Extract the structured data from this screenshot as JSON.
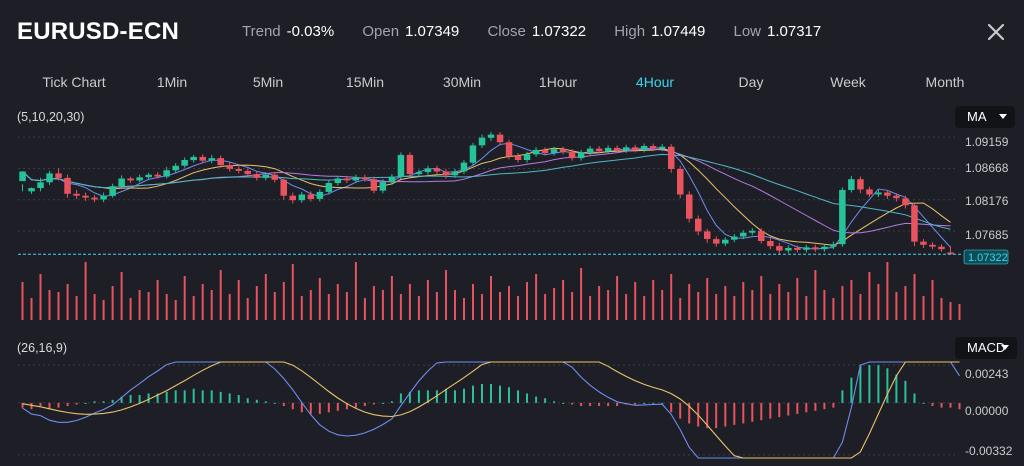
{
  "header": {
    "symbol": "EURUSD-ECN",
    "stats": [
      {
        "label": "Trend",
        "value": "-0.03%"
      },
      {
        "label": "Open",
        "value": "1.07349"
      },
      {
        "label": "Close",
        "value": "1.07322"
      },
      {
        "label": "High",
        "value": "1.07449"
      },
      {
        "label": "Low",
        "value": "1.07317"
      }
    ],
    "close_icon": "close-icon"
  },
  "tabs": [
    "Tick Chart",
    "1Min",
    "5Min",
    "15Min",
    "30Min",
    "1Hour",
    "4Hour",
    "Day",
    "Week",
    "Month"
  ],
  "active_tab": "4Hour",
  "colors": {
    "background": "#1e1f26",
    "up": "#26c29a",
    "down": "#e8535e",
    "accent": "#3ad6f0",
    "ma5": "#6f8cf0",
    "ma10": "#e8c36b",
    "ma20": "#b57be0",
    "ma30": "#4fb7c9"
  },
  "main_indicator": {
    "params": "(5,10,20,30)",
    "select": "MA",
    "price_ticks": [
      "1.09159",
      "1.08668",
      "1.08176",
      "1.07685"
    ],
    "current_price": "1.07322"
  },
  "sub_indicator": {
    "params": "(26,16,9)",
    "select": "MACD",
    "ticks": [
      "0.00243",
      "0.00000",
      "-0.00332"
    ]
  },
  "chart_data": {
    "type": "candlestick",
    "symbol": "EURUSD-ECN",
    "timeframe": "4Hour",
    "y_range": [
      1.072,
      1.0935
    ],
    "grid_levels": [
      1.09159,
      1.08668,
      1.08176,
      1.07685
    ],
    "close_line": 1.07322,
    "macd_range": [
      -0.0035,
      0.0026
    ],
    "candles": [
      [
        1.0847,
        1.0862,
        1.0842,
        1.0831
      ],
      [
        1.0831,
        1.0836,
        1.0837,
        1.0827
      ],
      [
        1.0836,
        1.0845,
        1.0852,
        1.0831
      ],
      [
        1.0845,
        1.0859,
        1.0863,
        1.0841
      ],
      [
        1.0859,
        1.0852,
        1.0867,
        1.0848
      ],
      [
        1.0852,
        1.0827,
        1.0857,
        1.0821
      ],
      [
        1.0827,
        1.0824,
        1.0833,
        1.0819
      ],
      [
        1.0824,
        1.0821,
        1.0829,
        1.0816
      ],
      [
        1.0821,
        1.0818,
        1.0825,
        1.0814
      ],
      [
        1.0818,
        1.0824,
        1.0829,
        1.0814
      ],
      [
        1.0824,
        1.0839,
        1.0843,
        1.0821
      ],
      [
        1.0839,
        1.0851,
        1.0856,
        1.0836
      ],
      [
        1.0851,
        1.0848,
        1.0854,
        1.0844
      ],
      [
        1.0848,
        1.0853,
        1.0857,
        1.0845
      ],
      [
        1.0853,
        1.0857,
        1.086,
        1.085
      ],
      [
        1.0857,
        1.0854,
        1.0861,
        1.0851
      ],
      [
        1.0854,
        1.0864,
        1.0869,
        1.0851
      ],
      [
        1.0864,
        1.0871,
        1.0875,
        1.086
      ],
      [
        1.0871,
        1.088,
        1.0884,
        1.0868
      ],
      [
        1.088,
        1.0885,
        1.0888,
        1.0876
      ],
      [
        1.0885,
        1.0879,
        1.0889,
        1.0875
      ],
      [
        1.0879,
        1.0883,
        1.0888,
        1.0875
      ],
      [
        1.0883,
        1.0872,
        1.0887,
        1.0868
      ],
      [
        1.0872,
        1.0866,
        1.0876,
        1.0862
      ],
      [
        1.0866,
        1.0863,
        1.087,
        1.0859
      ],
      [
        1.0863,
        1.0858,
        1.0867,
        1.0854
      ],
      [
        1.0858,
        1.0852,
        1.0862,
        1.0848
      ],
      [
        1.0852,
        1.0857,
        1.0861,
        1.0848
      ],
      [
        1.0857,
        1.0849,
        1.0861,
        1.0845
      ],
      [
        1.0849,
        1.0824,
        1.0853,
        1.0818
      ],
      [
        1.0824,
        1.0817,
        1.0829,
        1.0812
      ],
      [
        1.0817,
        1.0826,
        1.083,
        1.0813
      ],
      [
        1.0826,
        1.0819,
        1.0831,
        1.0815
      ],
      [
        1.0819,
        1.083,
        1.0834,
        1.0815
      ],
      [
        1.083,
        1.0844,
        1.0848,
        1.0826
      ],
      [
        1.0844,
        1.0851,
        1.0855,
        1.084
      ],
      [
        1.0851,
        1.0848,
        1.0855,
        1.0844
      ],
      [
        1.0848,
        1.0853,
        1.0857,
        1.0844
      ],
      [
        1.0853,
        1.085,
        1.0857,
        1.0846
      ],
      [
        1.085,
        1.0832,
        1.0854,
        1.0828
      ],
      [
        1.0832,
        1.0845,
        1.085,
        1.0828
      ],
      [
        1.0845,
        1.0854,
        1.0858,
        1.0841
      ],
      [
        1.0854,
        1.0888,
        1.0892,
        1.085
      ],
      [
        1.0888,
        1.0858,
        1.0892,
        1.0853
      ],
      [
        1.0858,
        1.0861,
        1.0865,
        1.0854
      ],
      [
        1.0861,
        1.0867,
        1.0871,
        1.0857
      ],
      [
        1.0867,
        1.0862,
        1.0871,
        1.0857
      ],
      [
        1.0862,
        1.0856,
        1.0866,
        1.0851
      ],
      [
        1.0856,
        1.0862,
        1.0866,
        1.0852
      ],
      [
        1.0862,
        1.0876,
        1.088,
        1.0858
      ],
      [
        1.0876,
        1.0903,
        1.0907,
        1.0872
      ],
      [
        1.0903,
        1.0915,
        1.092,
        1.0899
      ],
      [
        1.0915,
        1.092,
        1.0924,
        1.091
      ],
      [
        1.092,
        1.0908,
        1.0924,
        1.0903
      ],
      [
        1.0908,
        1.0886,
        1.0912,
        1.0881
      ],
      [
        1.0886,
        1.088,
        1.0891,
        1.0876
      ],
      [
        1.088,
        1.0889,
        1.0893,
        1.0876
      ],
      [
        1.0889,
        1.0896,
        1.09,
        1.0885
      ],
      [
        1.0896,
        1.0891,
        1.09,
        1.0887
      ],
      [
        1.0891,
        1.0897,
        1.0901,
        1.0887
      ],
      [
        1.0897,
        1.0893,
        1.0901,
        1.0889
      ],
      [
        1.0893,
        1.0883,
        1.0897,
        1.0879
      ],
      [
        1.0883,
        1.0892,
        1.0896,
        1.0879
      ],
      [
        1.0892,
        1.0898,
        1.0902,
        1.0888
      ],
      [
        1.0898,
        1.0894,
        1.0902,
        1.089
      ],
      [
        1.0894,
        1.0899,
        1.0903,
        1.089
      ],
      [
        1.0899,
        1.0895,
        1.0903,
        1.0891
      ],
      [
        1.0895,
        1.09,
        1.0904,
        1.0891
      ],
      [
        1.09,
        1.0896,
        1.0904,
        1.0892
      ],
      [
        1.0896,
        1.0902,
        1.0906,
        1.0892
      ],
      [
        1.0902,
        1.0898,
        1.0906,
        1.0894
      ],
      [
        1.0898,
        1.0901,
        1.0905,
        1.0894
      ],
      [
        1.0901,
        1.0866,
        1.0905,
        1.086
      ],
      [
        1.0866,
        1.0826,
        1.0871,
        1.082
      ],
      [
        1.0826,
        1.0788,
        1.0831,
        1.0782
      ],
      [
        1.0788,
        1.0768,
        1.0793,
        1.0762
      ],
      [
        1.0768,
        1.0756,
        1.0772,
        1.075
      ],
      [
        1.0756,
        1.0749,
        1.076,
        1.0744
      ],
      [
        1.0749,
        1.0755,
        1.0759,
        1.0745
      ],
      [
        1.0755,
        1.076,
        1.0764,
        1.0751
      ],
      [
        1.076,
        1.0766,
        1.077,
        1.0756
      ],
      [
        1.0766,
        1.0769,
        1.0773,
        1.0762
      ],
      [
        1.0769,
        1.0753,
        1.0773,
        1.0749
      ],
      [
        1.0753,
        1.0745,
        1.0758,
        1.074
      ],
      [
        1.0745,
        1.0738,
        1.075,
        1.0733
      ],
      [
        1.0738,
        1.0742,
        1.0746,
        1.0734
      ],
      [
        1.0742,
        1.0739,
        1.0746,
        1.0735
      ],
      [
        1.0739,
        1.0743,
        1.0747,
        1.0735
      ],
      [
        1.0743,
        1.074,
        1.0747,
        1.0736
      ],
      [
        1.074,
        1.0744,
        1.0748,
        1.0736
      ],
      [
        1.0744,
        1.0748,
        1.0752,
        1.074
      ],
      [
        1.0748,
        1.0833,
        1.0837,
        1.0744
      ],
      [
        1.0833,
        1.085,
        1.0855,
        1.0829
      ],
      [
        1.085,
        1.0834,
        1.0854,
        1.0828
      ],
      [
        1.0834,
        1.0826,
        1.0838,
        1.0822
      ],
      [
        1.0826,
        1.0829,
        1.0833,
        1.0822
      ],
      [
        1.0829,
        1.0824,
        1.0833,
        1.0819
      ],
      [
        1.0824,
        1.082,
        1.0828,
        1.0815
      ],
      [
        1.082,
        1.0809,
        1.0824,
        1.0804
      ],
      [
        1.0809,
        1.0752,
        1.0813,
        1.0745
      ],
      [
        1.0752,
        1.0747,
        1.0756,
        1.0742
      ],
      [
        1.0747,
        1.0744,
        1.0751,
        1.074
      ],
      [
        1.0744,
        1.074,
        1.0748,
        1.0736
      ],
      [
        1.07349,
        1.07322,
        1.07449,
        1.07317
      ]
    ],
    "volume": [
      38,
      22,
      46,
      30,
      28,
      36,
      24,
      58,
      26,
      20,
      34,
      48,
      22,
      30,
      28,
      40,
      26,
      20,
      44,
      24,
      36,
      30,
      50,
      26,
      40,
      22,
      34,
      46,
      28,
      38,
      56,
      24,
      30,
      42,
      26,
      36,
      28,
      58,
      22,
      34,
      30,
      44,
      26,
      36,
      24,
      40,
      28,
      50,
      30,
      22,
      36,
      26,
      44,
      28,
      34,
      24,
      38,
      46,
      26,
      32,
      40,
      28,
      52,
      24,
      34,
      30,
      44,
      26,
      38,
      24,
      40,
      30,
      46,
      22,
      36,
      28,
      42,
      26,
      34,
      24,
      38,
      30,
      44,
      26,
      36,
      28,
      42,
      24,
      50,
      30,
      22,
      34,
      40,
      26,
      48,
      36,
      58,
      28,
      34,
      46,
      24,
      40,
      22,
      18,
      16
    ],
    "macd_histogram": [
      -0.0003,
      -0.0004,
      -0.0002,
      -0.0004,
      -0.0003,
      -0.0002,
      -0.0001,
      0.0,
      0.0001,
      0.0001,
      0.0002,
      0.0004,
      0.0005,
      0.0005,
      0.0006,
      0.0006,
      0.0007,
      0.0008,
      0.0008,
      0.0009,
      0.0008,
      0.0008,
      0.0007,
      0.0006,
      0.0005,
      0.0003,
      0.0002,
      0.0001,
      0.0,
      -0.0002,
      -0.0004,
      -0.0006,
      -0.0007,
      -0.0007,
      -0.0006,
      -0.0005,
      -0.0004,
      -0.0003,
      -0.0002,
      -0.0001,
      0.0,
      0.0001,
      0.0006,
      0.0007,
      0.0008,
      0.0008,
      0.0008,
      0.0009,
      0.0008,
      0.0009,
      0.0011,
      0.0012,
      0.0012,
      0.0011,
      0.001,
      0.0008,
      0.0006,
      0.0004,
      0.0003,
      0.0001,
      0.0,
      -0.0001,
      -0.0002,
      -0.0002,
      -0.0002,
      -0.0002,
      -0.0002,
      -0.0001,
      -0.0001,
      0.0,
      0.0,
      0.0,
      -0.0006,
      -0.001,
      -0.0013,
      -0.0015,
      -0.0016,
      -0.0016,
      -0.0015,
      -0.0014,
      -0.0013,
      -0.0012,
      -0.0011,
      -0.001,
      -0.0009,
      -0.0008,
      -0.0007,
      -0.0006,
      -0.0005,
      -0.0004,
      -0.0003,
      0.0008,
      0.0016,
      0.0024,
      0.0024,
      0.0024,
      0.0022,
      0.0018,
      0.0014,
      0.0006,
      0.0,
      -0.0002,
      -0.0003,
      -0.0003,
      -0.0004
    ]
  }
}
